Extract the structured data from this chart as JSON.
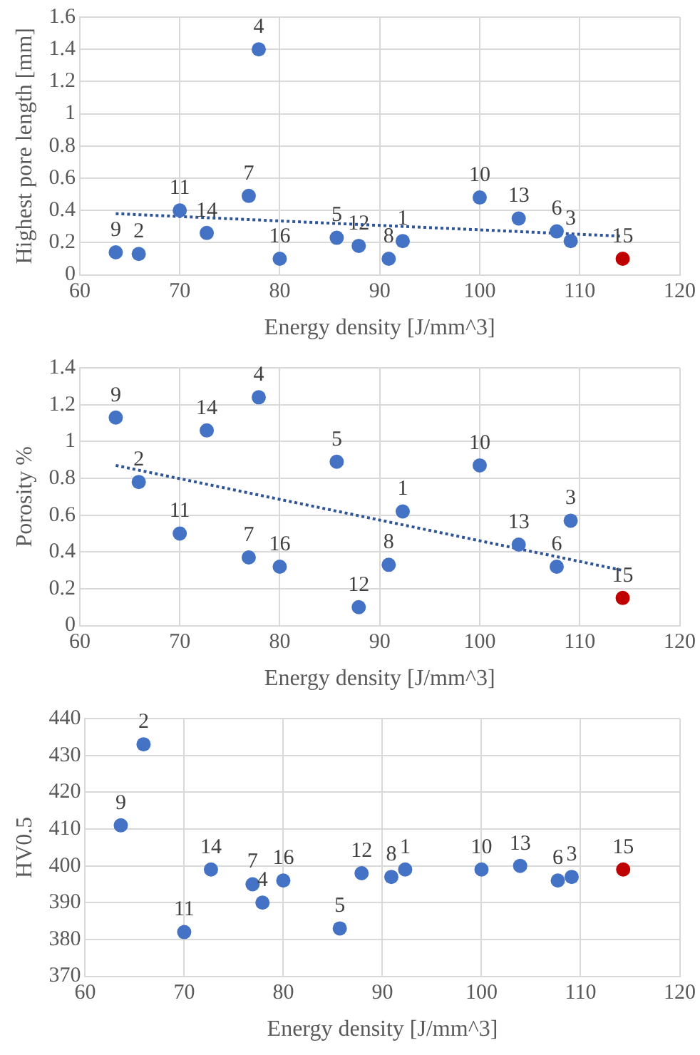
{
  "chart_data": [
    {
      "type": "scatter",
      "xlabel": "Energy density [J/mm^3]",
      "ylabel": "Highest pore length [mm]",
      "xlim": [
        60,
        120
      ],
      "xticks": [
        60,
        70,
        80,
        90,
        100,
        110,
        120
      ],
      "ylim": [
        0,
        1.6
      ],
      "yticks": [
        0,
        0.2,
        0.4,
        0.6,
        0.8,
        1,
        1.2,
        1.4,
        1.6
      ],
      "grid": true,
      "legend": false,
      "marker": "circle",
      "series": [
        {
          "color": "#4472c4",
          "x": [
            63.6,
            65.9,
            70,
            72.7,
            76.9,
            77.9,
            80,
            85.7,
            87.9,
            90.9,
            92.3,
            100,
            103.9,
            107.7,
            109.1
          ],
          "values": [
            0.14,
            0.13,
            0.4,
            0.26,
            0.49,
            1.4,
            0.1,
            0.23,
            0.18,
            0.1,
            0.21,
            0.48,
            0.35,
            0.27,
            0.21
          ]
        },
        {
          "color": "#c00000",
          "x": [
            114.3
          ],
          "values": [
            0.1
          ]
        },
        {
          "type": "line",
          "color": "#2f5597",
          "x": [
            63.6,
            114.3
          ],
          "values": [
            0.38,
            0.24
          ],
          "marker": "none",
          "line_style": "dotted"
        }
      ],
      "annotations": [
        {
          "text": "9",
          "x": 63.6,
          "y": 0.14
        },
        {
          "text": "2",
          "x": 65.9,
          "y": 0.13
        },
        {
          "text": "11",
          "x": 70,
          "y": 0.4
        },
        {
          "text": "14",
          "x": 72.7,
          "y": 0.26
        },
        {
          "text": "7",
          "x": 76.9,
          "y": 0.49
        },
        {
          "text": "4",
          "x": 77.9,
          "y": 1.4
        },
        {
          "text": "16",
          "x": 80,
          "y": 0.1
        },
        {
          "text": "5",
          "x": 85.7,
          "y": 0.23
        },
        {
          "text": "12",
          "x": 87.9,
          "y": 0.18
        },
        {
          "text": "8",
          "x": 90.9,
          "y": 0.1
        },
        {
          "text": "1",
          "x": 92.3,
          "y": 0.21
        },
        {
          "text": "10",
          "x": 100,
          "y": 0.48
        },
        {
          "text": "13",
          "x": 103.9,
          "y": 0.35
        },
        {
          "text": "6",
          "x": 107.7,
          "y": 0.27
        },
        {
          "text": "3",
          "x": 109.1,
          "y": 0.21
        },
        {
          "text": "15",
          "x": 114.3,
          "y": 0.1
        }
      ]
    },
    {
      "type": "scatter",
      "xlabel": "Energy density [J/mm^3]",
      "ylabel": "Porosity %",
      "xlim": [
        60,
        120
      ],
      "xticks": [
        60,
        70,
        80,
        90,
        100,
        110,
        120
      ],
      "ylim": [
        0,
        1.4
      ],
      "yticks": [
        0,
        0.2,
        0.4,
        0.6,
        0.8,
        1,
        1.2,
        1.4
      ],
      "grid": true,
      "legend": false,
      "marker": "circle",
      "series": [
        {
          "color": "#4472c4",
          "x": [
            63.6,
            65.9,
            70,
            72.7,
            76.9,
            77.9,
            80,
            85.7,
            87.9,
            90.9,
            92.3,
            100,
            103.9,
            107.7,
            109.1
          ],
          "values": [
            1.13,
            0.78,
            0.5,
            1.06,
            0.37,
            1.24,
            0.32,
            0.89,
            0.1,
            0.33,
            0.62,
            0.87,
            0.44,
            0.32,
            0.57
          ]
        },
        {
          "color": "#c00000",
          "x": [
            114.3
          ],
          "values": [
            0.15
          ]
        },
        {
          "type": "line",
          "color": "#2f5597",
          "x": [
            63.6,
            114.3
          ],
          "values": [
            0.87,
            0.3
          ],
          "marker": "none",
          "line_style": "dotted"
        }
      ],
      "annotations": [
        {
          "text": "9",
          "x": 63.6,
          "y": 1.13
        },
        {
          "text": "2",
          "x": 65.9,
          "y": 0.78
        },
        {
          "text": "11",
          "x": 70,
          "y": 0.5
        },
        {
          "text": "14",
          "x": 72.7,
          "y": 1.06
        },
        {
          "text": "7",
          "x": 76.9,
          "y": 0.37
        },
        {
          "text": "4",
          "x": 77.9,
          "y": 1.24
        },
        {
          "text": "16",
          "x": 80,
          "y": 0.32
        },
        {
          "text": "5",
          "x": 85.7,
          "y": 0.89
        },
        {
          "text": "12",
          "x": 87.9,
          "y": 0.1
        },
        {
          "text": "8",
          "x": 90.9,
          "y": 0.33
        },
        {
          "text": "1",
          "x": 92.3,
          "y": 0.62
        },
        {
          "text": "10",
          "x": 100,
          "y": 0.87
        },
        {
          "text": "13",
          "x": 103.9,
          "y": 0.44
        },
        {
          "text": "6",
          "x": 107.7,
          "y": 0.32
        },
        {
          "text": "3",
          "x": 109.1,
          "y": 0.57
        },
        {
          "text": "15",
          "x": 114.3,
          "y": 0.15
        }
      ]
    },
    {
      "type": "scatter",
      "xlabel": "Energy density [J/mm^3]",
      "ylabel": "HV0.5",
      "xlim": [
        60,
        120
      ],
      "xticks": [
        60,
        70,
        80,
        90,
        100,
        110,
        120
      ],
      "ylim": [
        370,
        440
      ],
      "yticks": [
        370,
        380,
        390,
        400,
        410,
        420,
        430,
        440
      ],
      "grid": true,
      "legend": false,
      "marker": "circle",
      "series": [
        {
          "color": "#4472c4",
          "x": [
            63.6,
            65.9,
            70,
            72.7,
            76.9,
            77.9,
            80,
            85.7,
            87.9,
            90.9,
            92.3,
            100,
            103.9,
            107.7,
            109.1
          ],
          "values": [
            411,
            433,
            382,
            399,
            395,
            390,
            396,
            383,
            398,
            397,
            399,
            399,
            400,
            396,
            397
          ]
        },
        {
          "color": "#c00000",
          "x": [
            114.3
          ],
          "values": [
            399
          ]
        }
      ],
      "annotations": [
        {
          "text": "9",
          "x": 63.6,
          "y": 411
        },
        {
          "text": "2",
          "x": 65.9,
          "y": 433
        },
        {
          "text": "11",
          "x": 70,
          "y": 382
        },
        {
          "text": "14",
          "x": 72.7,
          "y": 399
        },
        {
          "text": "7",
          "x": 76.9,
          "y": 395
        },
        {
          "text": "4",
          "x": 77.9,
          "y": 390
        },
        {
          "text": "16",
          "x": 80,
          "y": 396
        },
        {
          "text": "5",
          "x": 85.7,
          "y": 383
        },
        {
          "text": "12",
          "x": 87.9,
          "y": 398
        },
        {
          "text": "8",
          "x": 90.9,
          "y": 397
        },
        {
          "text": "1",
          "x": 92.3,
          "y": 399
        },
        {
          "text": "10",
          "x": 100,
          "y": 399
        },
        {
          "text": "13",
          "x": 103.9,
          "y": 400
        },
        {
          "text": "6",
          "x": 107.7,
          "y": 396
        },
        {
          "text": "3",
          "x": 109.1,
          "y": 397
        },
        {
          "text": "15",
          "x": 114.3,
          "y": 399
        }
      ]
    }
  ]
}
